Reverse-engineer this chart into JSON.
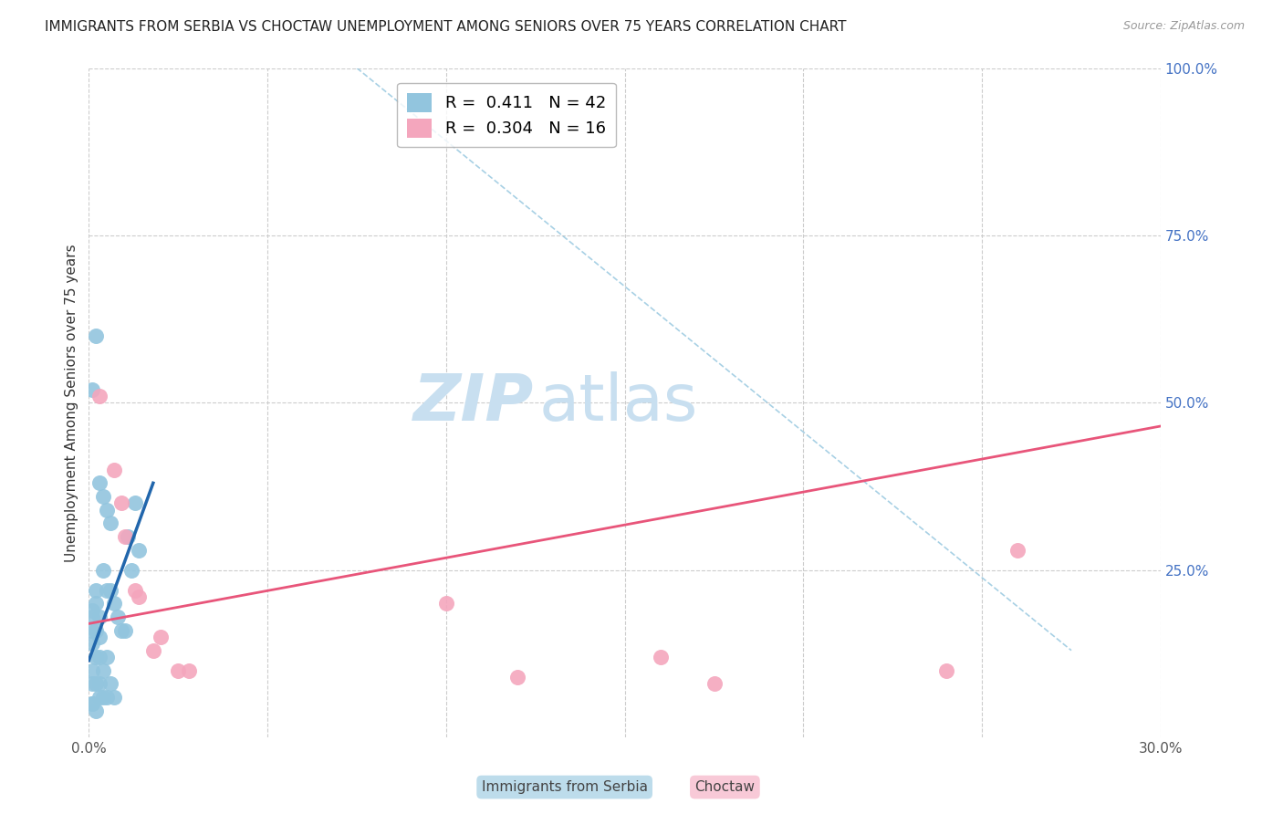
{
  "title": "IMMIGRANTS FROM SERBIA VS CHOCTAW UNEMPLOYMENT AMONG SENIORS OVER 75 YEARS CORRELATION CHART",
  "source": "Source: ZipAtlas.com",
  "ylabel": "Unemployment Among Seniors over 75 years",
  "x_label_serbia": "Immigrants from Serbia",
  "x_label_choctaw": "Choctaw",
  "xlim": [
    0.0,
    0.3
  ],
  "ylim": [
    0.0,
    1.0
  ],
  "watermark_zip": "ZIP",
  "watermark_atlas": "atlas",
  "legend_R1": "0.411",
  "legend_N1": "42",
  "legend_R2": "0.304",
  "legend_N2": "16",
  "serbia_color": "#92c5de",
  "choctaw_color": "#f4a6bd",
  "serbia_line_color": "#2166ac",
  "choctaw_line_color": "#e8557a",
  "ref_line_color": "#92c5de",
  "serbia_points_x": [
    0.001,
    0.001,
    0.001,
    0.001,
    0.001,
    0.001,
    0.001,
    0.002,
    0.002,
    0.002,
    0.002,
    0.002,
    0.003,
    0.003,
    0.003,
    0.003,
    0.003,
    0.004,
    0.004,
    0.004,
    0.005,
    0.005,
    0.005,
    0.006,
    0.006,
    0.007,
    0.007,
    0.008,
    0.009,
    0.01,
    0.011,
    0.012,
    0.013,
    0.014,
    0.001,
    0.002,
    0.003,
    0.004,
    0.005,
    0.006,
    0.001,
    0.002
  ],
  "serbia_points_y": [
    0.18,
    0.19,
    0.16,
    0.14,
    0.1,
    0.08,
    0.05,
    0.22,
    0.2,
    0.16,
    0.12,
    0.08,
    0.18,
    0.15,
    0.12,
    0.08,
    0.06,
    0.25,
    0.1,
    0.06,
    0.22,
    0.12,
    0.06,
    0.22,
    0.08,
    0.2,
    0.06,
    0.18,
    0.16,
    0.16,
    0.3,
    0.25,
    0.35,
    0.28,
    0.52,
    0.6,
    0.38,
    0.36,
    0.34,
    0.32,
    0.05,
    0.04
  ],
  "choctaw_points_x": [
    0.003,
    0.007,
    0.009,
    0.01,
    0.013,
    0.014,
    0.018,
    0.02,
    0.025,
    0.028,
    0.1,
    0.12,
    0.16,
    0.175,
    0.24,
    0.26
  ],
  "choctaw_points_y": [
    0.51,
    0.4,
    0.35,
    0.3,
    0.22,
    0.21,
    0.13,
    0.15,
    0.1,
    0.1,
    0.2,
    0.09,
    0.12,
    0.08,
    0.1,
    0.28
  ],
  "serbia_trend_x": [
    0.0,
    0.018
  ],
  "serbia_trend_y": [
    0.115,
    0.38
  ],
  "choctaw_trend_x": [
    0.0,
    0.3
  ],
  "choctaw_trend_y": [
    0.17,
    0.465
  ],
  "ref_line_x": [
    0.075,
    0.275
  ],
  "ref_line_y": [
    1.0,
    0.13
  ],
  "title_fontsize": 11,
  "axis_label_fontsize": 11,
  "tick_fontsize": 11,
  "legend_fontsize": 13,
  "watermark_fontsize_zip": 52,
  "watermark_fontsize_atlas": 52,
  "watermark_color_zip": "#c8dff0",
  "watermark_color_atlas": "#c8dff0",
  "background_color": "#ffffff",
  "grid_color": "#cccccc"
}
